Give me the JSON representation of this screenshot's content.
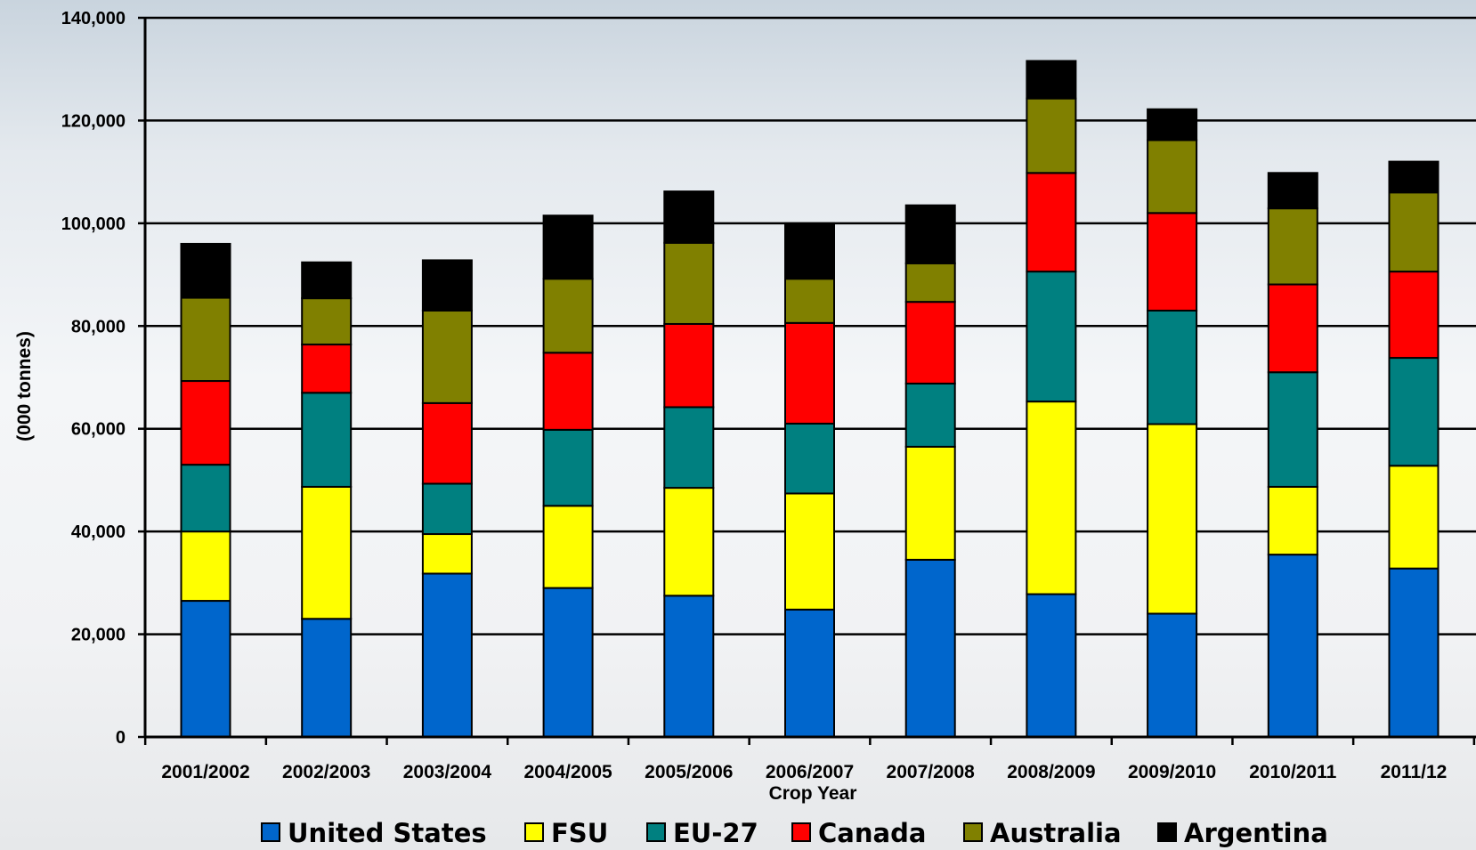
{
  "chart_data": {
    "type": "bar",
    "stacked": true,
    "title": "",
    "xlabel": "Crop Year",
    "ylabel": "(000 tonnes)",
    "ylim": [
      0,
      140000
    ],
    "yticks": [
      0,
      20000,
      40000,
      60000,
      80000,
      100000,
      120000,
      140000
    ],
    "ytick_labels": [
      "0",
      "20,000",
      "40,000",
      "60,000",
      "80,000",
      "100,000",
      "120,000",
      "140,000"
    ],
    "grid": true,
    "legend_position": "bottom",
    "categories": [
      "2001/2002",
      "2002/2003",
      "2003/2004",
      "2004/2005",
      "2005/2006",
      "2006/2007",
      "2007/2008",
      "2008/2009",
      "2009/2010",
      "2010/2011",
      "2011/12"
    ],
    "series": [
      {
        "name": "United States",
        "color": "#0066cc",
        "values": [
          26500,
          23000,
          31800,
          29000,
          27500,
          24800,
          34500,
          27800,
          24000,
          35500,
          32800
        ]
      },
      {
        "name": "FSU",
        "color": "#ffff00",
        "values": [
          13500,
          25700,
          7700,
          16000,
          21000,
          22600,
          22000,
          37500,
          36900,
          13200,
          20000
        ]
      },
      {
        "name": "EU-27",
        "color": "#008080",
        "values": [
          13000,
          18300,
          9800,
          14800,
          15700,
          13600,
          12300,
          25300,
          22100,
          22300,
          21000
        ]
      },
      {
        "name": "Canada",
        "color": "#ff0000",
        "values": [
          16300,
          9400,
          15700,
          15000,
          16200,
          19600,
          15900,
          19200,
          19000,
          17100,
          16800
        ]
      },
      {
        "name": "Australia",
        "color": "#808000",
        "values": [
          16200,
          9000,
          18000,
          14400,
          15800,
          8600,
          7500,
          14500,
          14200,
          14800,
          15400
        ]
      },
      {
        "name": "Argentina",
        "color": "#000000",
        "values": [
          10500,
          7000,
          9800,
          12300,
          10000,
          10800,
          11300,
          7300,
          6000,
          6900,
          6000
        ]
      }
    ]
  }
}
